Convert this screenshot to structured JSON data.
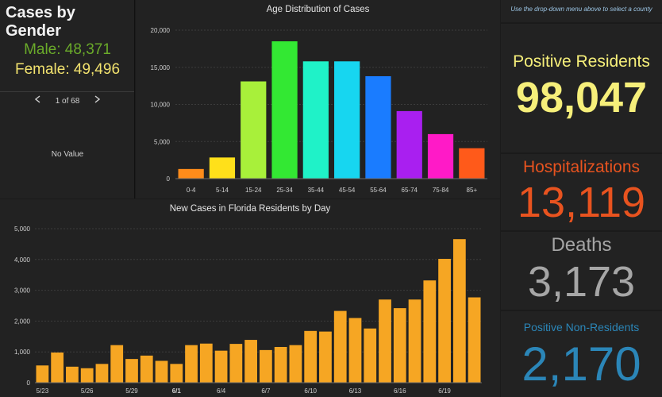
{
  "gender": {
    "title": "Cases by Gender",
    "male": "Male: 48,371",
    "female": "Female: 49,496",
    "pager": "1 of 68",
    "no_value": "No Value"
  },
  "colors": {
    "male": "#6aaa2a",
    "female": "#f2e26e",
    "positive": "#f6ef7a",
    "hospitalizations": "#e8531f",
    "deaths": "#a6a6a6",
    "non_residents": "#2b86b8",
    "daily_bar": "#f6a623"
  },
  "right": {
    "note": "Use the drop-down menu above to select a county",
    "positive_label": "Positive Residents",
    "positive_value": "98,047",
    "hosp_label": "Hospitalizations",
    "hosp_value": "13,119",
    "deaths_label": "Deaths",
    "deaths_value": "3,173",
    "nonres_label": "Positive Non-Residents",
    "nonres_value": "2,170"
  },
  "chart_data": [
    {
      "type": "bar",
      "title": "Age Distribution of Cases",
      "categories": [
        "0-4",
        "5-14",
        "15-24",
        "25-34",
        "35-44",
        "45-54",
        "55-64",
        "65-74",
        "75-84",
        "85+"
      ],
      "values": [
        1300,
        2850,
        13100,
        18500,
        15800,
        15800,
        13800,
        9100,
        6000,
        4100
      ],
      "colors": [
        "#ff8c1a",
        "#ffe01a",
        "#a8f03a",
        "#33e833",
        "#1ff2c8",
        "#17d6f0",
        "#1a7cff",
        "#a91ff0",
        "#ff1ac7",
        "#ff5a1a"
      ],
      "ylim": [
        0,
        20000
      ],
      "yticks": [
        "0",
        "5,000",
        "10,000",
        "15,000",
        "20,000"
      ],
      "grid": true
    },
    {
      "type": "bar",
      "title": "New Cases in Florida Residents by Day",
      "values": [
        560,
        980,
        520,
        470,
        610,
        1220,
        770,
        880,
        710,
        610,
        1220,
        1270,
        1040,
        1260,
        1390,
        1060,
        1160,
        1220,
        1680,
        1660,
        2330,
        2100,
        1760,
        2700,
        2420,
        2700,
        3320,
        4020,
        4660,
        2770
      ],
      "xticks": [
        {
          "index": 0,
          "label": "5/23",
          "bold": false
        },
        {
          "index": 3,
          "label": "5/26",
          "bold": false
        },
        {
          "index": 6,
          "label": "5/29",
          "bold": false
        },
        {
          "index": 9,
          "label": "6/1",
          "bold": true
        },
        {
          "index": 12,
          "label": "6/4",
          "bold": false
        },
        {
          "index": 15,
          "label": "6/7",
          "bold": false
        },
        {
          "index": 18,
          "label": "6/10",
          "bold": false
        },
        {
          "index": 21,
          "label": "6/13",
          "bold": false
        },
        {
          "index": 24,
          "label": "6/16",
          "bold": false
        },
        {
          "index": 27,
          "label": "6/19",
          "bold": false
        }
      ],
      "ylim": [
        0,
        5000
      ],
      "yticks": [
        "0",
        "1,000",
        "2,000",
        "3,000",
        "4,000",
        "5,000"
      ],
      "grid": true
    }
  ]
}
